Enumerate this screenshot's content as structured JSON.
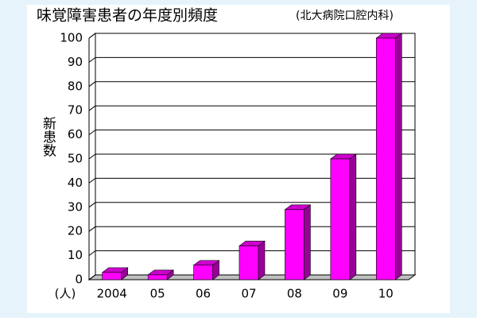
{
  "chart_data": {
    "type": "bar",
    "title": "味覚障害患者の年度別頻度",
    "subtitle": "(北大病院口腔内科)",
    "y_label": "新患数",
    "unit_label": "(人)",
    "categories": [
      "2004",
      "05",
      "06",
      "07",
      "08",
      "09",
      "10"
    ],
    "values": [
      3,
      2,
      6,
      14,
      29,
      50,
      100
    ],
    "color": "#ff00ff",
    "ylim": [
      0,
      100
    ],
    "yticks": [
      0,
      10,
      20,
      30,
      40,
      50,
      60,
      70,
      80,
      90,
      100
    ],
    "grid": true
  }
}
